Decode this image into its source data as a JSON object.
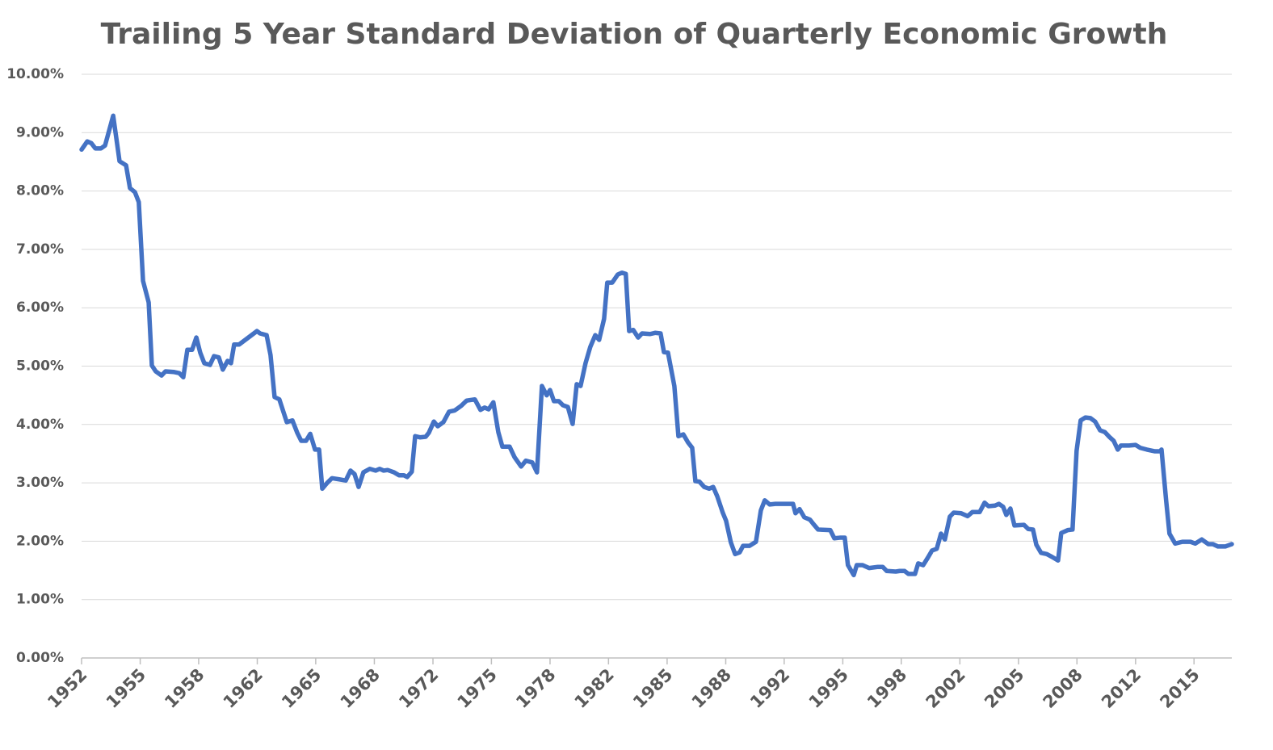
{
  "chart_data": {
    "type": "line",
    "title": "Trailing 5 Year Standard Deviation of Quarterly Economic Growth",
    "color": "#4472c4",
    "grid": true,
    "xlim": [
      1952,
      2017.14
    ],
    "xticks": [
      1952,
      {
        "value": 1955.32,
        "label": "1955"
      },
      {
        "value": 1958.63,
        "label": "1958"
      },
      {
        "value": 1961.95,
        "label": "1962"
      },
      {
        "value": 1965.26,
        "label": "1965"
      },
      {
        "value": 1968.58,
        "label": "1968"
      },
      {
        "value": 1971.9,
        "label": "1972"
      },
      {
        "value": 1975.21,
        "label": "1975"
      },
      {
        "value": 1978.53,
        "label": "1978"
      },
      {
        "value": 1981.84,
        "label": "1982"
      },
      {
        "value": 1985.16,
        "label": "1985"
      },
      {
        "value": 1988.48,
        "label": "1988"
      },
      {
        "value": 1991.79,
        "label": "1992"
      },
      {
        "value": 1995.11,
        "label": "1995"
      },
      {
        "value": 1998.42,
        "label": "1998"
      },
      {
        "value": 2001.74,
        "label": "2002"
      },
      {
        "value": 2005.06,
        "label": "2005"
      },
      {
        "value": 2008.37,
        "label": "2008"
      },
      {
        "value": 2011.69,
        "label": "2012"
      },
      2015
    ],
    "ylim": [
      0,
      10
    ],
    "yticks": [
      {
        "value": 0,
        "label": "0.00%"
      },
      {
        "value": 1,
        "label": "1.00%"
      },
      {
        "value": 2,
        "label": "2.00%"
      },
      {
        "value": 3,
        "label": "3.00%"
      },
      {
        "value": 4,
        "label": "4.00%"
      },
      {
        "value": 5,
        "label": "5.00%"
      },
      {
        "value": 6,
        "label": "6.00%"
      },
      {
        "value": 7,
        "label": "7.00%"
      },
      {
        "value": 8,
        "label": "8.00%"
      },
      {
        "value": 9,
        "label": "9.00%"
      },
      {
        "value": 10,
        "label": "10.00%"
      }
    ],
    "x": [
      1952,
      1952.32,
      1952.55,
      1952.78,
      1953.1,
      1953.33,
      1953.79,
      1954.15,
      1954.52,
      1954.74,
      1955.02,
      1955.24,
      1955.48,
      1955.8,
      1955.98,
      1956.2,
      1956.53,
      1956.75,
      1957.21,
      1957.53,
      1957.76,
      1957.99,
      1958.26,
      1958.5,
      1958.72,
      1958.95,
      1959.27,
      1959.5,
      1959.77,
      1960,
      1960.27,
      1960.46,
      1960.64,
      1960.92,
      1961.93,
      1962.11,
      1962.48,
      1962.7,
      1962.93,
      1963.2,
      1963.62,
      1963.94,
      1964.21,
      1964.44,
      1964.71,
      1964.95,
      1965.22,
      1965.45,
      1965.63,
      1965.91,
      1966.18,
      1966.59,
      1966.96,
      1967.23,
      1967.46,
      1967.69,
      1967.96,
      1968.32,
      1968.65,
      1968.88,
      1969.11,
      1969.33,
      1969.7,
      1969.98,
      1970.25,
      1970.44,
      1970.7,
      1970.89,
      1971.16,
      1971.49,
      1971.67,
      1971.95,
      1972.17,
      1972.49,
      1972.81,
      1973.13,
      1973.5,
      1973.81,
      1974.27,
      1974.59,
      1974.82,
      1975.05,
      1975.32,
      1975.6,
      1975.83,
      1976.24,
      1976.52,
      1976.89,
      1977.16,
      1977.52,
      1977.79,
      1978.07,
      1978.34,
      1978.53,
      1978.75,
      1979.03,
      1979.26,
      1979.54,
      1979.81,
      1980.04,
      1980.26,
      1980.54,
      1980.81,
      1981.09,
      1981.31,
      1981.59,
      1981.77,
      1982.05,
      1982.37,
      1982.6,
      1982.82,
      1983.01,
      1983.24,
      1983.52,
      1983.74,
      1984.2,
      1984.48,
      1984.79,
      1984.98,
      1985.21,
      1985.57,
      1985.8,
      1986.08,
      1986.35,
      1986.58,
      1986.76,
      1986.99,
      1987.26,
      1987.54,
      1987.77,
      1988,
      1988.31,
      1988.5,
      1988.77,
      1989.01,
      1989.27,
      1989.46,
      1989.82,
      1990.19,
      1990.47,
      1990.69,
      1990.97,
      1991.29,
      1992.11,
      1992.29,
      1992.43,
      1992.66,
      1992.93,
      1993.25,
      1993.43,
      1993.71,
      1994.4,
      1994.63,
      1994.94,
      1995.22,
      1995.4,
      1995.73,
      1995.9,
      1996.23,
      1996.6,
      1997.1,
      1997.37,
      1997.6,
      1998.11,
      1998.33,
      1998.61,
      1998.83,
      1999.2,
      1999.38,
      1999.66,
      1999.93,
      2000.16,
      2000.43,
      2000.67,
      2000.89,
      2001.17,
      2001.39,
      2001.81,
      2002.18,
      2002.45,
      2002.86,
      2003.14,
      2003.36,
      2003.73,
      2003.95,
      2004.19,
      2004.37,
      2004.6,
      2004.83,
      2005.37,
      2005.61,
      2005.88,
      2006.07,
      2006.34,
      2006.66,
      2006.97,
      2007.3,
      2007.48,
      2007.85,
      2008.12,
      2008.35,
      2008.58,
      2008.85,
      2009.13,
      2009.4,
      2009.68,
      2009.95,
      2010.23,
      2010.45,
      2010.68,
      2010.86,
      2011.32,
      2011.69,
      2011.96,
      2012.33,
      2012.79,
      2013.07,
      2013.16,
      2013.42,
      2013.61,
      2013.93,
      2014.34,
      2014.8,
      2015.07,
      2015.44,
      2015.81,
      2016.07,
      2016.35,
      2016.77,
      2017.14
    ],
    "values": [
      8.71,
      8.85,
      8.82,
      8.73,
      8.73,
      8.78,
      9.29,
      8.51,
      8.44,
      8.05,
      7.98,
      7.81,
      6.46,
      6.09,
      5.01,
      4.91,
      4.84,
      4.91,
      4.9,
      4.88,
      4.81,
      5.28,
      5.28,
      5.49,
      5.23,
      5.05,
      5.02,
      5.17,
      5.15,
      4.94,
      5.09,
      5.05,
      5.37,
      5.37,
      5.6,
      5.56,
      5.53,
      5.19,
      4.47,
      4.43,
      4.04,
      4.07,
      3.86,
      3.72,
      3.72,
      3.84,
      3.57,
      3.57,
      2.9,
      3.0,
      3.08,
      3.06,
      3.04,
      3.21,
      3.15,
      2.93,
      3.18,
      3.24,
      3.21,
      3.24,
      3.21,
      3.22,
      3.18,
      3.13,
      3.13,
      3.1,
      3.19,
      3.8,
      3.78,
      3.79,
      3.86,
      4.05,
      3.97,
      4.04,
      4.22,
      4.24,
      4.32,
      4.41,
      4.43,
      4.25,
      4.29,
      4.26,
      4.38,
      3.87,
      3.62,
      3.62,
      3.44,
      3.28,
      3.38,
      3.35,
      3.18,
      4.66,
      4.5,
      4.59,
      4.4,
      4.4,
      4.33,
      4.3,
      4.01,
      4.69,
      4.66,
      5.05,
      5.33,
      5.53,
      5.45,
      5.81,
      6.43,
      6.43,
      6.57,
      6.6,
      6.58,
      5.6,
      5.62,
      5.49,
      5.56,
      5.55,
      5.57,
      5.56,
      5.24,
      5.23,
      4.66,
      3.8,
      3.83,
      3.69,
      3.6,
      3.03,
      3.02,
      2.93,
      2.9,
      2.93,
      2.77,
      2.49,
      2.35,
      1.98,
      1.78,
      1.81,
      1.92,
      1.92,
      1.99,
      2.53,
      2.7,
      2.63,
      2.64,
      2.64,
      2.64,
      2.48,
      2.55,
      2.41,
      2.37,
      2.3,
      2.2,
      2.19,
      2.05,
      2.06,
      2.06,
      1.59,
      1.42,
      1.59,
      1.59,
      1.54,
      1.56,
      1.56,
      1.49,
      1.48,
      1.49,
      1.49,
      1.44,
      1.44,
      1.62,
      1.59,
      1.72,
      1.84,
      1.87,
      2.13,
      2.03,
      2.42,
      2.49,
      2.48,
      2.43,
      2.5,
      2.5,
      2.66,
      2.6,
      2.61,
      2.64,
      2.59,
      2.45,
      2.56,
      2.27,
      2.28,
      2.21,
      2.2,
      1.94,
      1.8,
      1.78,
      1.73,
      1.67,
      2.14,
      2.19,
      2.2,
      3.55,
      4.07,
      4.12,
      4.11,
      4.05,
      3.9,
      3.87,
      3.78,
      3.72,
      3.57,
      3.64,
      3.64,
      3.65,
      3.6,
      3.57,
      3.54,
      3.54,
      3.57,
      2.7,
      2.13,
      1.96,
      1.99,
      1.99,
      1.96,
      2.03,
      1.95,
      1.95,
      1.91,
      1.91,
      1.95
    ]
  }
}
